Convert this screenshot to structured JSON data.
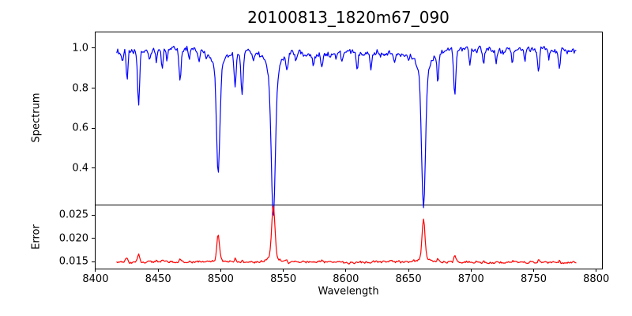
{
  "chart_data": {
    "type": "line",
    "title": "20100813_1820m67_090",
    "xlabel": "Wavelength",
    "xlim": [
      8399.4,
      8804.6
    ],
    "x_ticks": [
      8400,
      8450,
      8500,
      8550,
      8600,
      8650,
      8700,
      8750,
      8800
    ],
    "grid": false,
    "legend": "none",
    "panels": [
      {
        "name": "spectrum",
        "ylabel": "Spectrum",
        "color": "#0000ff",
        "ylim": [
          0.217,
          1.083
        ],
        "y_ticks": [
          0.4,
          0.6,
          0.8,
          1.0
        ],
        "y_tick_decimals": 1,
        "x_range": [
          8417,
          8784
        ],
        "continuum_level": 0.98,
        "absorption_lines": [
          [
            8421.4,
            0.925,
            0.6
          ],
          [
            8425.2,
            0.835,
            0.7
          ],
          [
            8434.4,
            0.71,
            0.8
          ],
          [
            8443.0,
            0.935,
            0.6
          ],
          [
            8448.6,
            0.925,
            0.6
          ],
          [
            8453.3,
            0.9,
            0.7
          ],
          [
            8457.0,
            0.94,
            0.5
          ],
          [
            8467.5,
            0.83,
            0.8
          ],
          [
            8474.9,
            0.95,
            0.5
          ],
          [
            8482.6,
            0.925,
            0.6
          ],
          [
            8488.0,
            0.955,
            0.5
          ],
          [
            8498.0,
            0.45,
            1.3
          ],
          [
            8511.5,
            0.8,
            0.8
          ],
          [
            8517.0,
            0.77,
            0.9
          ],
          [
            8526.0,
            0.93,
            0.6
          ],
          [
            8542.0,
            0.26,
            1.6
          ],
          [
            8553.0,
            0.905,
            0.7
          ],
          [
            8560.0,
            0.938,
            0.6
          ],
          [
            8568.0,
            0.952,
            0.5
          ],
          [
            8574.0,
            0.925,
            0.6
          ],
          [
            8581.0,
            0.905,
            0.7
          ],
          [
            8592.0,
            0.945,
            0.5
          ],
          [
            8597.0,
            0.93,
            0.6
          ],
          [
            8609.0,
            0.9,
            0.7
          ],
          [
            8620.0,
            0.89,
            0.7
          ],
          [
            8628.0,
            0.95,
            0.5
          ],
          [
            8639.0,
            0.937,
            0.6
          ],
          [
            8650.0,
            0.93,
            0.6
          ],
          [
            8662.0,
            0.305,
            1.5
          ],
          [
            8673.5,
            0.825,
            0.7
          ],
          [
            8687.0,
            0.755,
            0.8
          ],
          [
            8699.0,
            0.92,
            0.6
          ],
          [
            8710.0,
            0.915,
            0.7
          ],
          [
            8720.0,
            0.93,
            0.5
          ],
          [
            8733.0,
            0.92,
            0.6
          ],
          [
            8743.0,
            0.94,
            0.5
          ],
          [
            8754.0,
            0.885,
            0.7
          ],
          [
            8762.0,
            0.93,
            0.5
          ],
          [
            8770.5,
            0.905,
            0.7
          ]
        ]
      },
      {
        "name": "error",
        "ylabel": "Error",
        "color": "#ff0000",
        "ylim": [
          0.01355,
          0.02725
        ],
        "y_ticks": [
          0.015,
          0.02,
          0.025
        ],
        "y_tick_decimals": 3,
        "x_range": [
          8417,
          8784
        ],
        "baseline_level": 0.0149,
        "error_peaks": [
          [
            8424.8,
            0.0159,
            0.7
          ],
          [
            8434.4,
            0.0168,
            0.7
          ],
          [
            8448.6,
            0.0154,
            0.5
          ],
          [
            8453.3,
            0.0154,
            0.5
          ],
          [
            8467.5,
            0.0157,
            0.7
          ],
          [
            8482.6,
            0.0152,
            0.5
          ],
          [
            8498.0,
            0.0205,
            1.0
          ],
          [
            8511.5,
            0.0157,
            0.6
          ],
          [
            8517.0,
            0.0156,
            0.6
          ],
          [
            8542.0,
            0.0262,
            1.3
          ],
          [
            8553.0,
            0.0154,
            0.5
          ],
          [
            8581.0,
            0.0154,
            0.5
          ],
          [
            8609.0,
            0.0153,
            0.5
          ],
          [
            8662.0,
            0.0236,
            1.1
          ],
          [
            8673.5,
            0.0157,
            0.6
          ],
          [
            8687.0,
            0.0163,
            0.7
          ],
          [
            8710.0,
            0.0153,
            0.5
          ],
          [
            8733.0,
            0.0154,
            0.5
          ],
          [
            8754.0,
            0.0155,
            0.6
          ],
          [
            8770.5,
            0.0153,
            0.5
          ]
        ]
      }
    ]
  }
}
